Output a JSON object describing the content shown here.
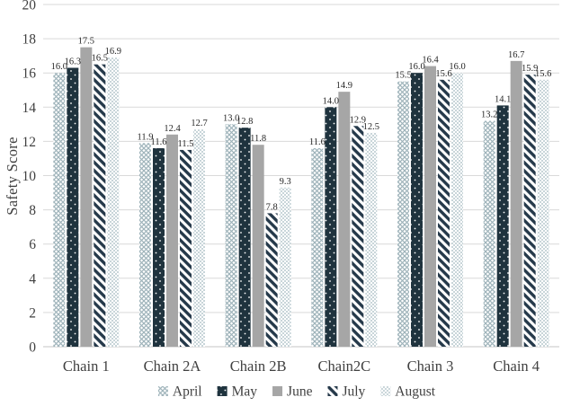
{
  "chart_data": {
    "type": "bar",
    "title": "",
    "xlabel": "",
    "ylabel": "Safety Score",
    "ylim": [
      0,
      20
    ],
    "yticks": [
      0,
      2,
      4,
      6,
      8,
      10,
      12,
      14,
      16,
      18,
      20
    ],
    "grid": true,
    "data_labels": true,
    "legend_position": "bottom",
    "categories": [
      "Chain 1",
      "Chain 2A",
      "Chain 2B",
      "Chain2C",
      "Chain 3",
      "Chain 4"
    ],
    "series": [
      {
        "name": "April",
        "pattern": "diamond-lattice",
        "color": "#9eb3ba",
        "values": [
          16.0,
          11.9,
          13.0,
          11.6,
          15.5,
          13.2
        ]
      },
      {
        "name": "May",
        "pattern": "dark-dotted",
        "color": "#1f333e",
        "values": [
          16.3,
          11.6,
          12.8,
          14.0,
          16.0,
          14.1
        ]
      },
      {
        "name": "June",
        "pattern": "solid",
        "color": "#a6a6a6",
        "values": [
          17.5,
          12.4,
          11.8,
          14.9,
          16.4,
          16.7
        ]
      },
      {
        "name": "July",
        "pattern": "diagonal-stripes",
        "color": "#25394a",
        "values": [
          16.5,
          11.5,
          7.8,
          12.9,
          15.6,
          15.9
        ]
      },
      {
        "name": "August",
        "pattern": "checker",
        "color": "#c8d5d9",
        "values": [
          16.9,
          12.7,
          9.3,
          12.5,
          16.0,
          15.6
        ]
      }
    ],
    "colors": {
      "gridline": "#d9d9d9",
      "axis_line": "#c6c6c6",
      "tick_text": "#404040",
      "data_label_text": "#262626",
      "pattern_background": "#ffffff"
    }
  }
}
